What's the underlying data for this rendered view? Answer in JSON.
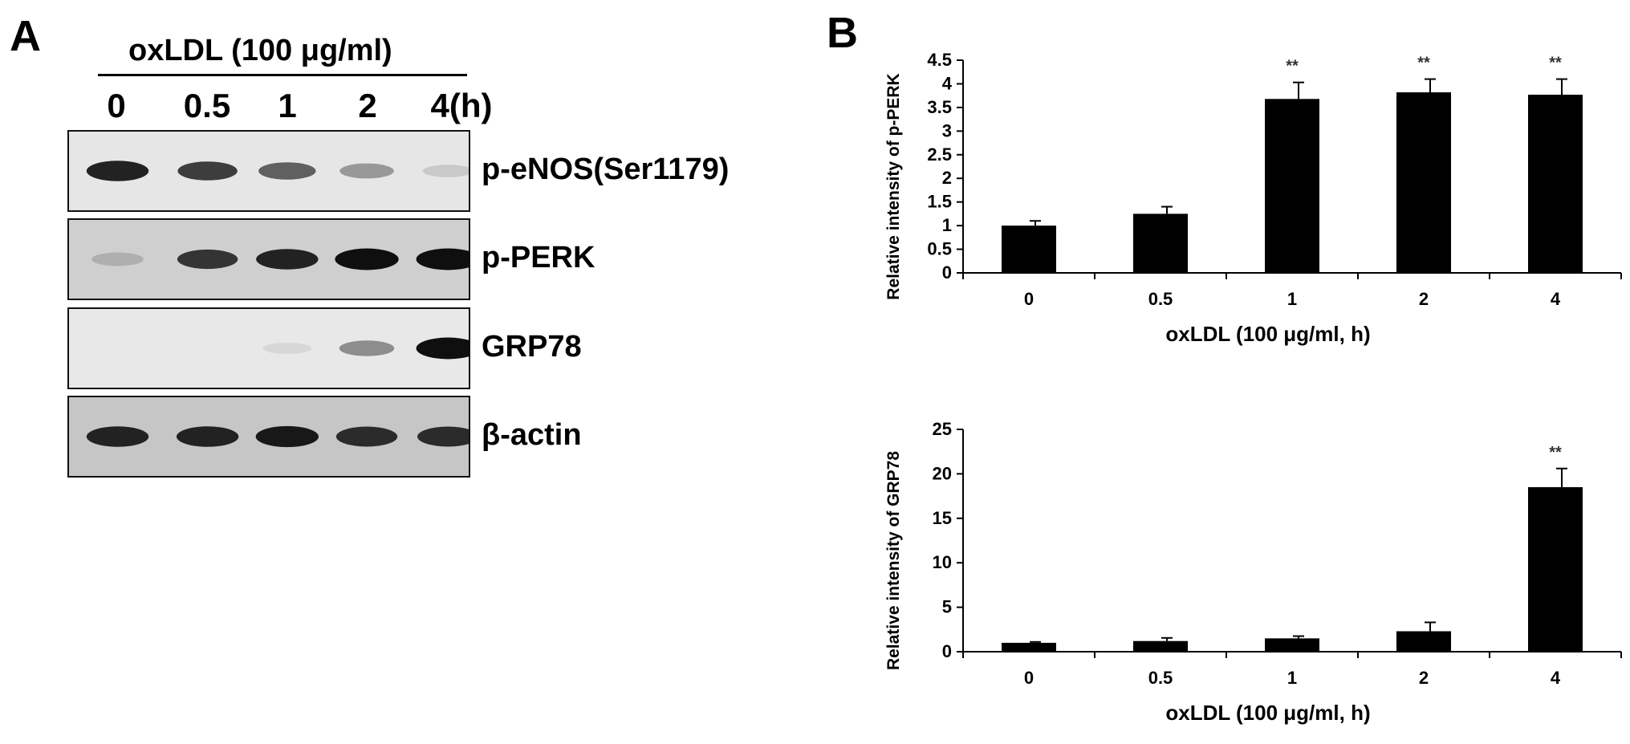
{
  "panel_a": {
    "letter": "A",
    "treatment_label": "oxLDL (100 μg/ml)",
    "lanes": [
      "0",
      "0.5",
      "1",
      "2",
      "4(h)"
    ],
    "blots": [
      {
        "label": "p-eNOS(Ser1179)",
        "intensities": [
          0.9,
          0.75,
          0.6,
          0.4,
          0.15
        ],
        "background": "#e6e6e6"
      },
      {
        "label": "p-PERK",
        "intensities": [
          0.25,
          0.8,
          0.9,
          1.0,
          1.0
        ],
        "background": "#cfcfcf"
      },
      {
        "label": "GRP78",
        "intensities": [
          0.0,
          0.0,
          0.05,
          0.45,
          1.0
        ],
        "background": "#e8e8e8"
      },
      {
        "label": "β-actin",
        "intensities": [
          0.9,
          0.9,
          0.95,
          0.85,
          0.85
        ],
        "background": "#c6c6c6"
      }
    ]
  },
  "panel_b": {
    "letter": "B"
  },
  "chart_data": [
    {
      "type": "bar",
      "title": "",
      "xlabel": "oxLDL (100 μg/ml, h)",
      "ylabel": "Relative intensity of p-PERK",
      "categories": [
        "0",
        "0.5",
        "1",
        "2",
        "4"
      ],
      "values": [
        1.0,
        1.25,
        3.68,
        3.82,
        3.77
      ],
      "errors": [
        0.1,
        0.15,
        0.35,
        0.28,
        0.33
      ],
      "annotations": [
        "",
        "",
        "**",
        "**",
        "**"
      ],
      "ylim": [
        0,
        4.5
      ],
      "yticks": [
        "0",
        "0.5",
        "1",
        "1.5",
        "2",
        "2.5",
        "3",
        "3.5",
        "4",
        "4.5"
      ],
      "bar_color": "#000000",
      "grid": false
    },
    {
      "type": "bar",
      "title": "",
      "xlabel": "oxLDL (100 μg/ml, h)",
      "ylabel": "Relative intensity of GRP78",
      "categories": [
        "0",
        "0.5",
        "1",
        "2",
        "4"
      ],
      "values": [
        1.0,
        1.2,
        1.5,
        2.3,
        18.5
      ],
      "errors": [
        0.1,
        0.35,
        0.25,
        1.0,
        2.1
      ],
      "annotations": [
        "",
        "",
        "",
        "",
        "**"
      ],
      "ylim": [
        0,
        25
      ],
      "yticks": [
        "0",
        "5",
        "10",
        "15",
        "20",
        "25"
      ],
      "bar_color": "#000000",
      "grid": false
    }
  ]
}
